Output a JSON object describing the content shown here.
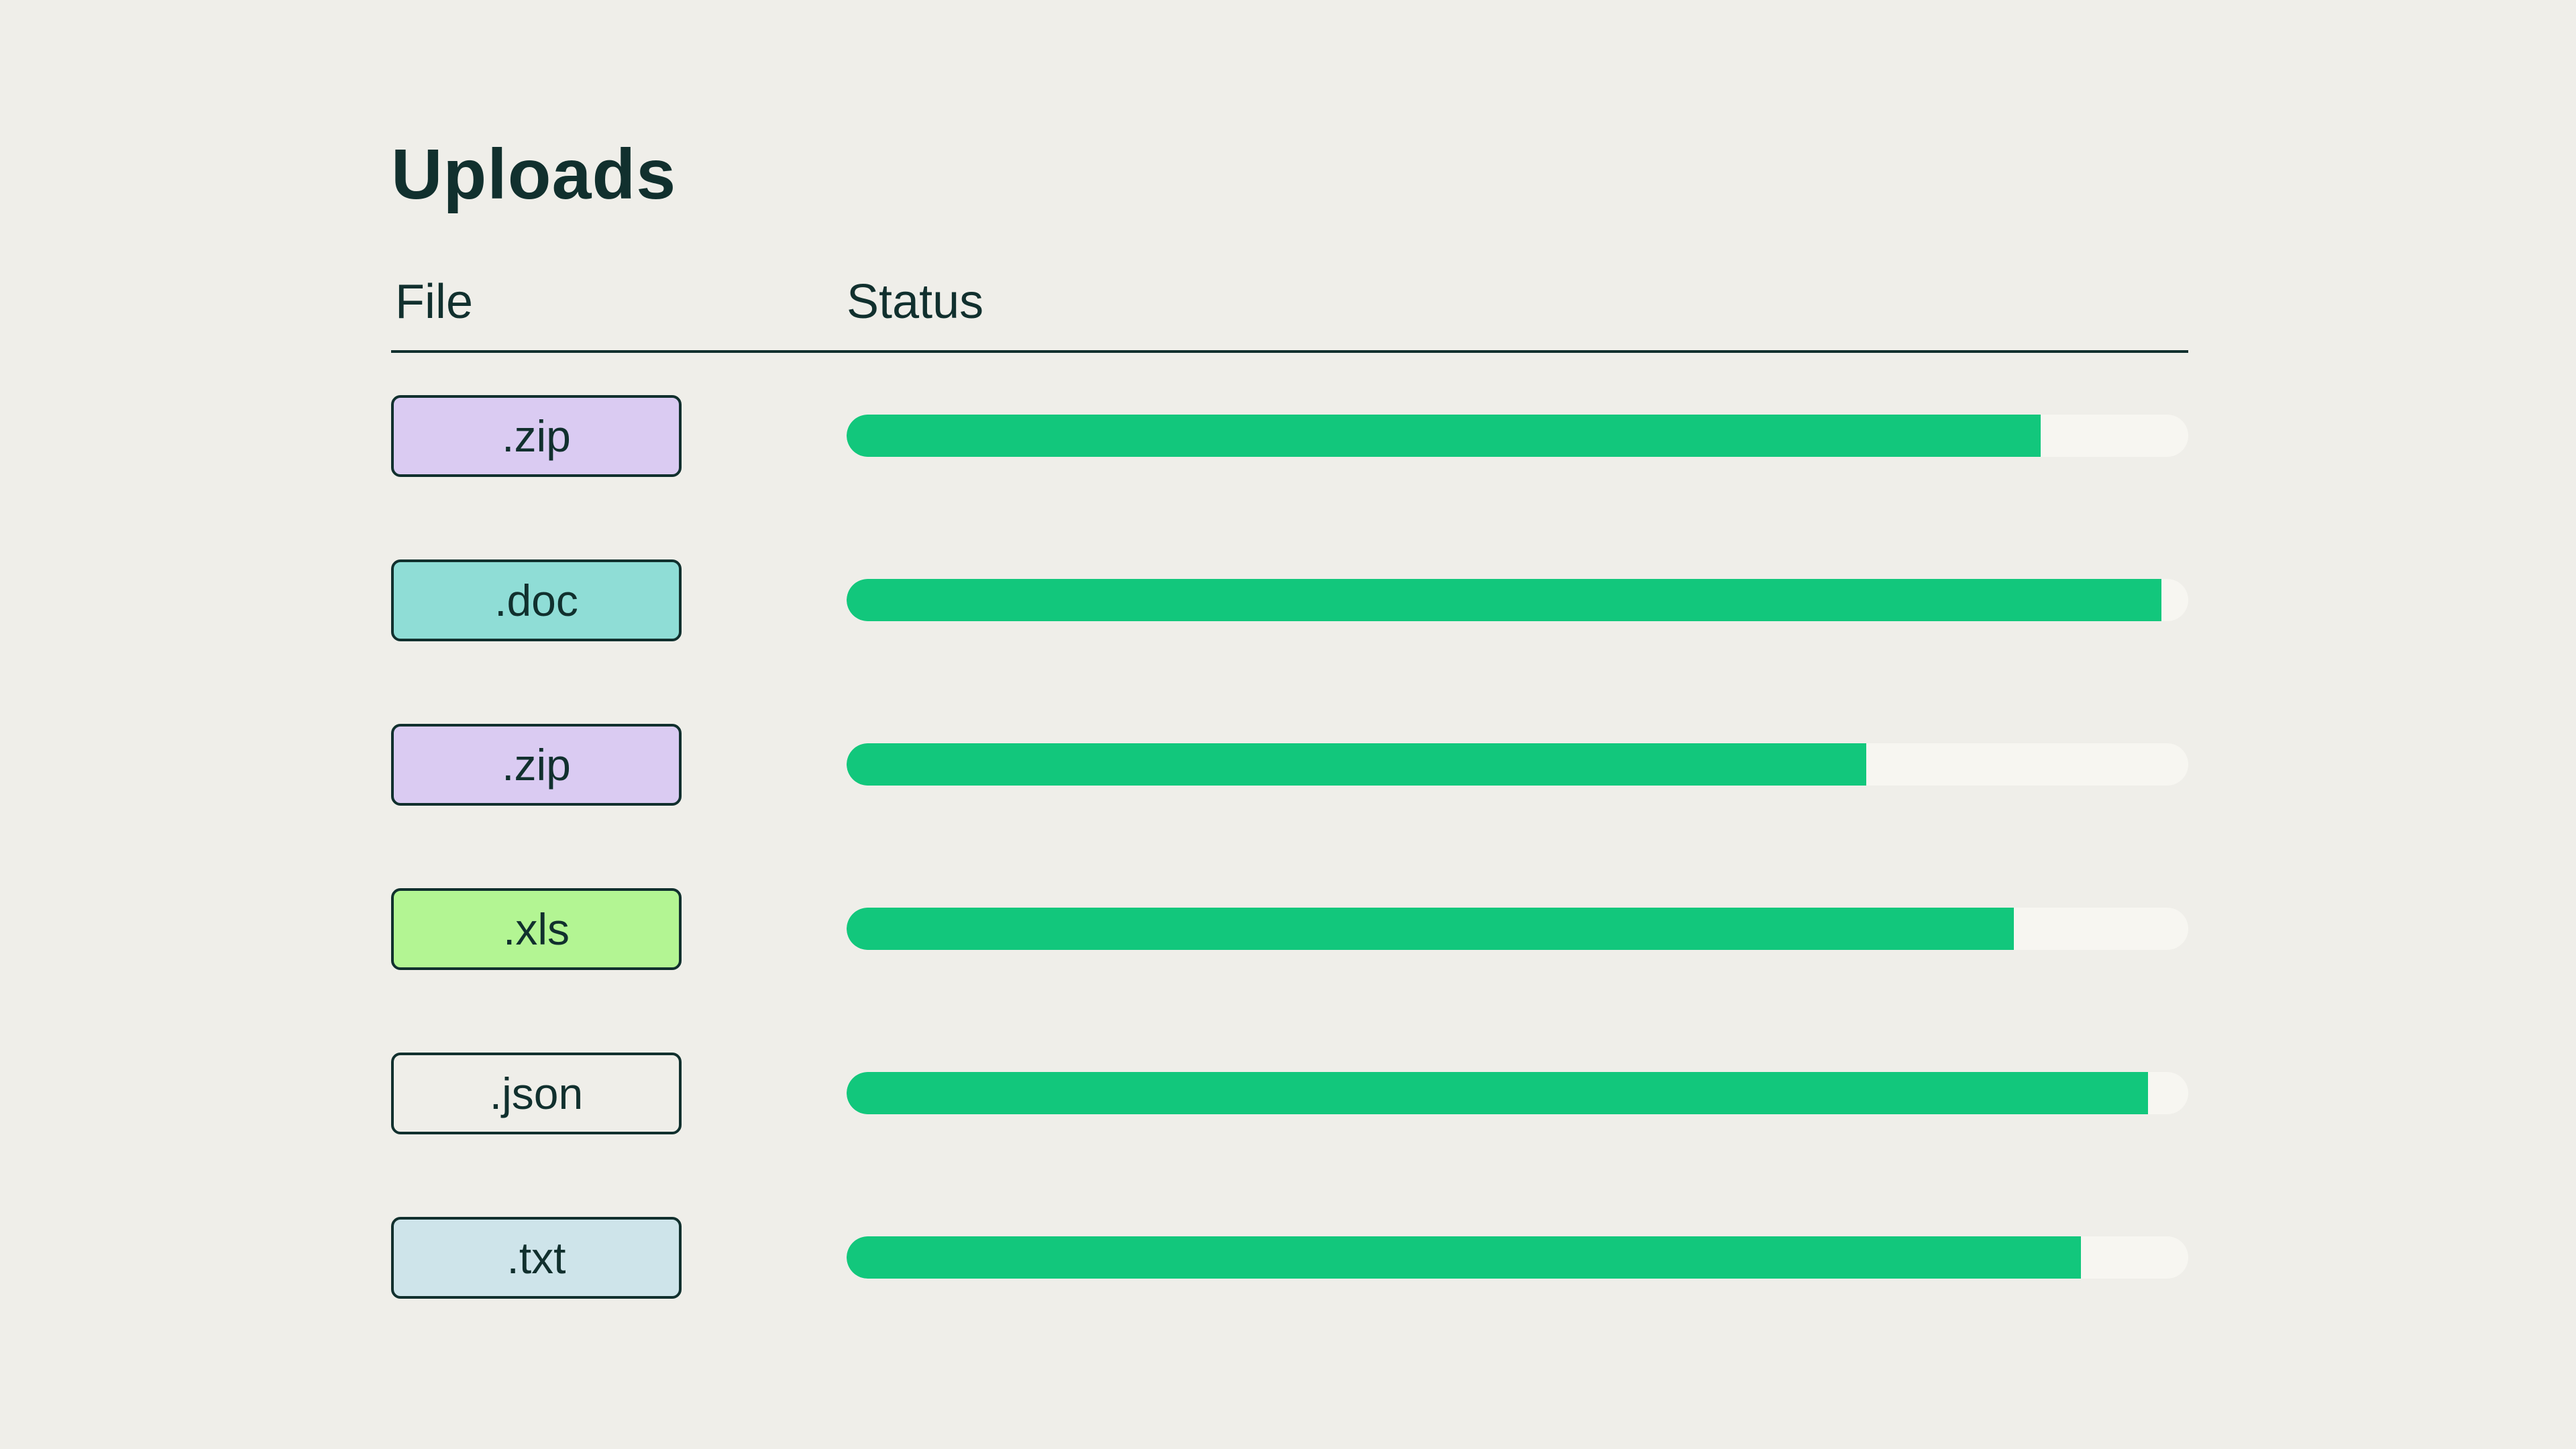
{
  "page": {
    "title": "Uploads",
    "background_color": "#efeee9",
    "text_color": "#11302e"
  },
  "table": {
    "columns": {
      "file": "File",
      "status": "Status"
    },
    "progress_color": "#12c77c",
    "track_color": "#f7f6f1",
    "badge_border_color": "#11302e",
    "rows": [
      {
        "file": ".zip",
        "badge_color": "#dacbf2",
        "progress_pct": 89
      },
      {
        "file": ".doc",
        "badge_color": "#8fddd6",
        "progress_pct": 98
      },
      {
        "file": ".zip",
        "badge_color": "#dacbf2",
        "progress_pct": 76
      },
      {
        "file": ".xls",
        "badge_color": "#b3f593",
        "progress_pct": 87
      },
      {
        "file": ".json",
        "badge_color": "transparent",
        "progress_pct": 97
      },
      {
        "file": ".txt",
        "badge_color": "#cee4ea",
        "progress_pct": 92
      }
    ]
  }
}
